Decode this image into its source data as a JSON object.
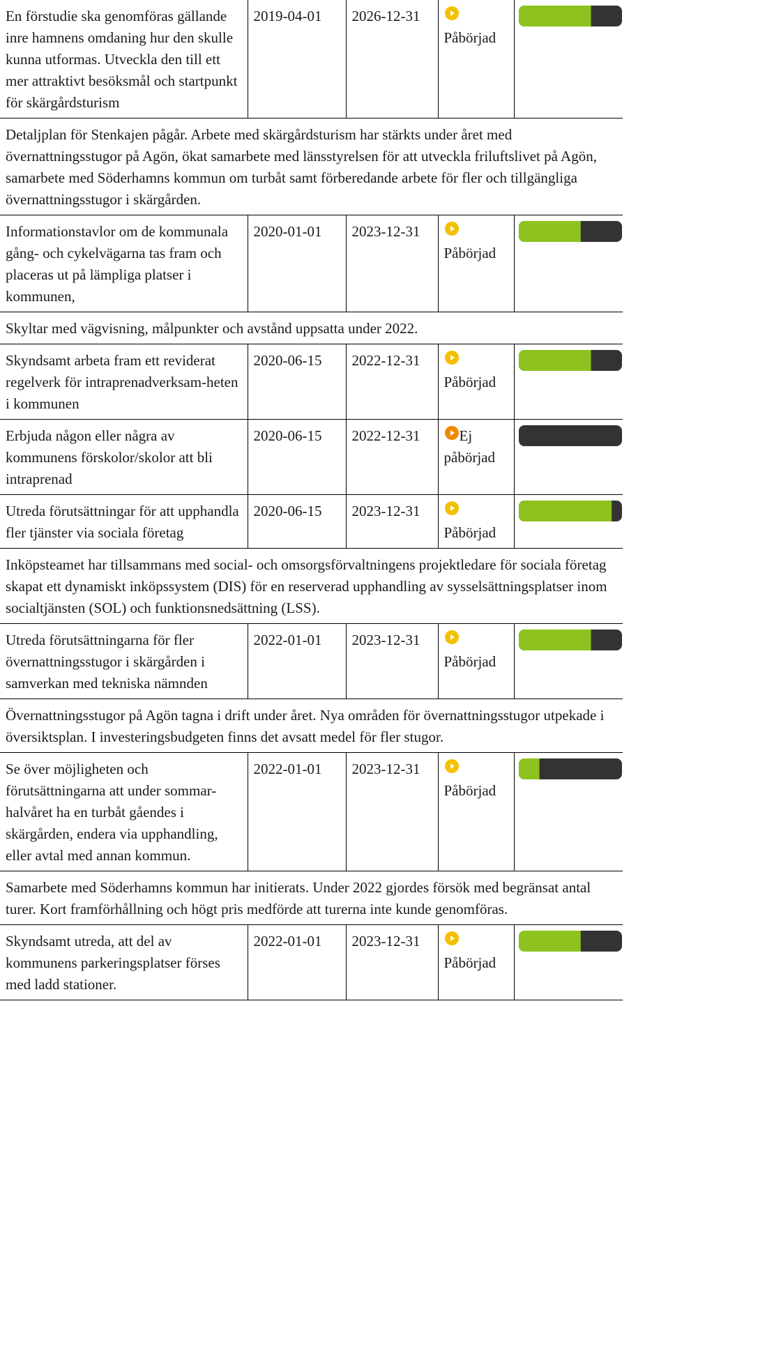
{
  "progress_range": [
    0,
    100
  ],
  "rows": [
    {
      "description": "En förstudie ska genomföras gällande inre hamnens omdaning hur den skulle kunna utformas. Utveckla den till ett mer attraktivt besöksmål och startpunkt för skärgårdsturism",
      "start": "2019-04-01",
      "end": "2026-12-31",
      "status": "Påbörjad",
      "status_color": "#f5c000",
      "progress": 70
    },
    {
      "comment": "Detaljplan för Stenkajen pågår. Arbete med skärgårdsturism har stärkts under året med övernattningsstugor på Agön, ökat samarbete med länsstyrelsen för att utveckla friluftslivet på Agön, samarbete med Söderhamns kommun om turbåt samt förberedande arbete för fler och tillgängliga övernattningsstugor i skärgården."
    },
    {
      "description": "Informationstavlor om de kommunala gång- och cykelvägarna tas fram och placeras ut på lämpliga platser i kommunen,",
      "start": "2020-01-01",
      "end": "2023-12-31",
      "status": "Påbörjad",
      "status_color": "#f5c000",
      "progress": 60
    },
    {
      "comment": "Skyltar med vägvisning, målpunkter och avstånd uppsatta under 2022."
    },
    {
      "description": "Skyndsamt arbeta fram ett reviderat regelverk för intraprenadverksam-heten i kommunen",
      "start": "2020-06-15",
      "end": "2022-12-31",
      "status": "Påbörjad",
      "status_color": "#f5c000",
      "progress": 70
    },
    {
      "description": "Erbjuda någon eller några av kommunens förskolor/skolor att bli intraprenad",
      "start": "2020-06-15",
      "end": "2022-12-31",
      "status": "Ej påbörjad",
      "status_color": "#f08a00",
      "progress": 0
    },
    {
      "description": "Utreda förutsättningar för att upphandla fler tjänster via sociala företag",
      "start": "2020-06-15",
      "end": "2023-12-31",
      "status": "Påbörjad",
      "status_color": "#f5c000",
      "progress": 90
    },
    {
      "comment": "Inköpsteamet har tillsammans med social- och omsorgsförvaltningens projektledare för sociala företag skapat ett dynamiskt inköpssystem (DIS) för en reserverad upphandling av sysselsättningsplatser inom socialtjänsten (SOL) och funktionsnedsättning (LSS)."
    },
    {
      "description": "Utreda förutsättningarna för fler övernattningsstugor i skärgården i samverkan med tekniska nämnden",
      "start": "2022-01-01",
      "end": "2023-12-31",
      "status": "Påbörjad",
      "status_color": "#f5c000",
      "progress": 70
    },
    {
      "comment": "Övernattningsstugor på Agön tagna i drift under året. Nya områden för övernattningsstugor utpekade i översiktsplan. I investeringsbudgeten finns det avsatt medel för fler stugor."
    },
    {
      "description": "Se över möjligheten och förutsättningarna att under sommar-halvåret ha en turbåt gåendes i skärgården, endera via upphandling, eller avtal med annan kommun.",
      "start": "2022-01-01",
      "end": "2023-12-31",
      "status": "Påbörjad",
      "status_color": "#f5c000",
      "progress": 20
    },
    {
      "comment": "Samarbete med Söderhamns kommun har initierats. Under 2022 gjordes försök med begränsat antal turer. Kort framförhållning och högt pris medförde att turerna inte kunde genomföras."
    },
    {
      "description": "Skyndsamt utreda, att del av kommunens parkeringsplatser förses med ladd stationer.",
      "start": "2022-01-01",
      "end": "2023-12-31",
      "status": "Påbörjad",
      "status_color": "#f5c000",
      "progress": 60
    }
  ]
}
